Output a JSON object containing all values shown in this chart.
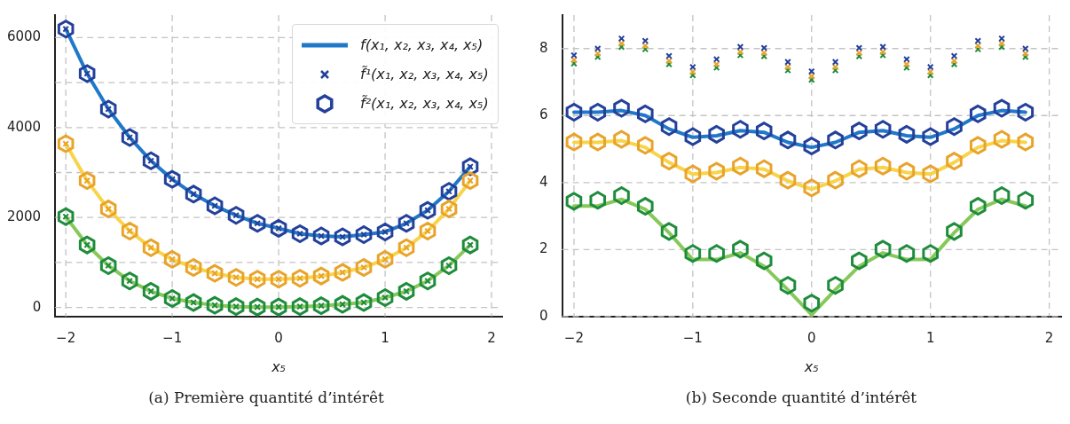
{
  "chart_data": [
    {
      "type": "line",
      "title": "(a) Première quantité d’intérêt",
      "xlabel": "x₅",
      "x": [
        -2,
        -1.8,
        -1.6,
        -1.4,
        -1.2,
        -1,
        -0.8,
        -0.6,
        -0.4,
        -0.2,
        0,
        0.2,
        0.4,
        0.6,
        0.8,
        1,
        1.2,
        1.4,
        1.6,
        1.8
      ],
      "xlim": [
        -2.1,
        2.1
      ],
      "xticks": [
        -2,
        -1,
        0,
        1,
        2
      ],
      "ylim": [
        -200,
        6500
      ],
      "yticks": [
        0,
        {
          "value": 1000,
          "label": null
        },
        2000,
        {
          "value": 3000,
          "label": null
        },
        4000,
        {
          "value": 5000,
          "label": null
        },
        6000
      ],
      "grid": true,
      "legend": "top right",
      "series": [
        {
          "name": "f(x₁, x₂, x₃, x₄, x₅)",
          "marker": "none",
          "color": "#1f78c8",
          "values": [
            6190,
            5200,
            4410,
            3780,
            3260,
            2850,
            2520,
            2260,
            2050,
            1870,
            1760,
            1640,
            1590,
            1570,
            1620,
            1680,
            1870,
            2160,
            2580,
            3130
          ]
        },
        {
          "marker": "none",
          "color": "#f7d44a",
          "values": [
            3640,
            2820,
            2190,
            1700,
            1330,
            1070,
            890,
            760,
            670,
            630,
            630,
            650,
            700,
            780,
            890,
            1070,
            1330,
            1700,
            2190,
            2820
          ]
        },
        {
          "marker": "none",
          "color": "#86c85a",
          "values": [
            2020,
            1390,
            930,
            590,
            360,
            200,
            110,
            50,
            20,
            10,
            10,
            20,
            40,
            70,
            110,
            220,
            360,
            590,
            930,
            1390
          ]
        },
        {
          "name": "f̃¹(x₁, x₂, x₃, x₄, x₅)",
          "type": "scatter",
          "marker": "cross",
          "color": "#23409a",
          "values": [
            6190,
            5200,
            4410,
            3780,
            3260,
            2850,
            2520,
            2260,
            2050,
            1870,
            1760,
            1640,
            1590,
            1570,
            1620,
            1680,
            1870,
            2160,
            2580,
            3130
          ]
        },
        {
          "type": "scatter",
          "marker": "cross",
          "color": "#e9a32a",
          "values": [
            3640,
            2820,
            2190,
            1700,
            1330,
            1070,
            890,
            760,
            670,
            630,
            630,
            650,
            700,
            780,
            890,
            1070,
            1330,
            1700,
            2190,
            2820
          ]
        },
        {
          "type": "scatter",
          "marker": "cross",
          "color": "#1e8c3c",
          "values": [
            2020,
            1390,
            930,
            590,
            360,
            200,
            110,
            50,
            20,
            10,
            10,
            20,
            40,
            70,
            110,
            220,
            360,
            590,
            930,
            1390
          ]
        },
        {
          "name": "f̃²(x₁, x₂, x₃, x₄, x₅)",
          "type": "scatter",
          "color": "#23409a",
          "values": [
            6190,
            5200,
            4410,
            3780,
            3260,
            2850,
            2520,
            2260,
            2050,
            1870,
            1760,
            1640,
            1590,
            1570,
            1620,
            1680,
            1870,
            2160,
            2580,
            3130
          ]
        },
        {
          "type": "scatter",
          "color": "#e9a32a",
          "values": [
            3640,
            2820,
            2190,
            1700,
            1330,
            1070,
            890,
            760,
            670,
            630,
            630,
            650,
            700,
            780,
            890,
            1070,
            1330,
            1700,
            2190,
            2820
          ]
        },
        {
          "type": "scatter",
          "color": "#1e8c3c",
          "values": [
            2020,
            1390,
            930,
            590,
            360,
            200,
            110,
            50,
            20,
            10,
            10,
            20,
            40,
            70,
            110,
            220,
            360,
            590,
            930,
            1390
          ]
        }
      ]
    },
    {
      "type": "line",
      "title": "(b) Seconde quantité d’intérêt",
      "xlabel": "x₅",
      "x": [
        -2,
        -1.8,
        -1.6,
        -1.4,
        -1.2,
        -1,
        -0.8,
        -0.6,
        -0.4,
        -0.2,
        0,
        0.2,
        0.4,
        0.6,
        0.8,
        1,
        1.2,
        1.4,
        1.6,
        1.8
      ],
      "xlim": [
        -2.1,
        2.1
      ],
      "xticks": [
        -2,
        -1,
        0,
        1,
        2
      ],
      "ylim": [
        0,
        9
      ],
      "yticks": [
        0,
        2,
        4,
        6,
        8
      ],
      "grid": true,
      "series": [
        {
          "marker": "none",
          "color": "#1f78c8",
          "values": [
            6.1,
            6.1,
            6.15,
            6.0,
            5.6,
            5.35,
            5.4,
            5.55,
            5.5,
            5.2,
            5.05,
            5.2,
            5.5,
            5.55,
            5.4,
            5.35,
            5.6,
            6.0,
            6.15,
            6.1
          ]
        },
        {
          "marker": "none",
          "color": "#f7d44a",
          "values": [
            5.2,
            5.2,
            5.25,
            5.05,
            4.6,
            4.25,
            4.3,
            4.45,
            4.4,
            4.05,
            3.8,
            4.05,
            4.4,
            4.45,
            4.3,
            4.25,
            4.6,
            5.05,
            5.25,
            5.2
          ]
        },
        {
          "marker": "none",
          "color": "#86c85a",
          "values": [
            3.3,
            3.3,
            3.5,
            3.2,
            2.5,
            1.7,
            1.7,
            1.9,
            1.5,
            0.8,
            0.05,
            0.8,
            1.5,
            1.9,
            1.7,
            1.7,
            2.5,
            3.2,
            3.5,
            3.3
          ]
        },
        {
          "type": "scatter",
          "marker": "cross",
          "color": "#23409a",
          "values": [
            7.8,
            8.0,
            8.3,
            8.23,
            7.78,
            7.45,
            7.68,
            8.05,
            8.02,
            7.6,
            7.32,
            7.6,
            8.02,
            8.05,
            7.68,
            7.45,
            7.78,
            8.23,
            8.3,
            8.0
          ]
        },
        {
          "type": "scatter",
          "marker": "cross",
          "color": "#e9a32a",
          "values": [
            7.65,
            7.85,
            8.15,
            8.08,
            7.63,
            7.3,
            7.53,
            7.9,
            7.87,
            7.45,
            7.17,
            7.45,
            7.87,
            7.9,
            7.53,
            7.3,
            7.63,
            8.08,
            8.15,
            7.85
          ]
        },
        {
          "type": "scatter",
          "marker": "cross",
          "color": "#1e8c3c",
          "values": [
            7.55,
            7.75,
            8.05,
            7.98,
            7.53,
            7.2,
            7.43,
            7.8,
            7.77,
            7.35,
            7.07,
            7.35,
            7.77,
            7.8,
            7.43,
            7.2,
            7.53,
            7.98,
            8.05,
            7.75
          ]
        },
        {
          "type": "scatter",
          "color": "#23409a",
          "values": [
            6.1,
            6.1,
            6.22,
            6.05,
            5.67,
            5.37,
            5.44,
            5.59,
            5.54,
            5.27,
            5.09,
            5.27,
            5.54,
            5.59,
            5.44,
            5.37,
            5.67,
            6.05,
            6.22,
            6.1
          ]
        },
        {
          "type": "scatter",
          "color": "#e9a32a",
          "values": [
            5.21,
            5.21,
            5.29,
            5.11,
            4.64,
            4.26,
            4.34,
            4.49,
            4.41,
            4.07,
            3.84,
            4.07,
            4.41,
            4.49,
            4.34,
            4.26,
            4.64,
            5.11,
            5.29,
            5.21
          ]
        },
        {
          "type": "scatter",
          "color": "#1e8c3c",
          "values": [
            3.44,
            3.47,
            3.61,
            3.29,
            2.54,
            1.88,
            1.88,
            2.01,
            1.66,
            0.93,
            0.4,
            0.93,
            1.66,
            2.01,
            1.88,
            1.88,
            2.54,
            3.29,
            3.61,
            3.47
          ]
        }
      ]
    }
  ]
}
